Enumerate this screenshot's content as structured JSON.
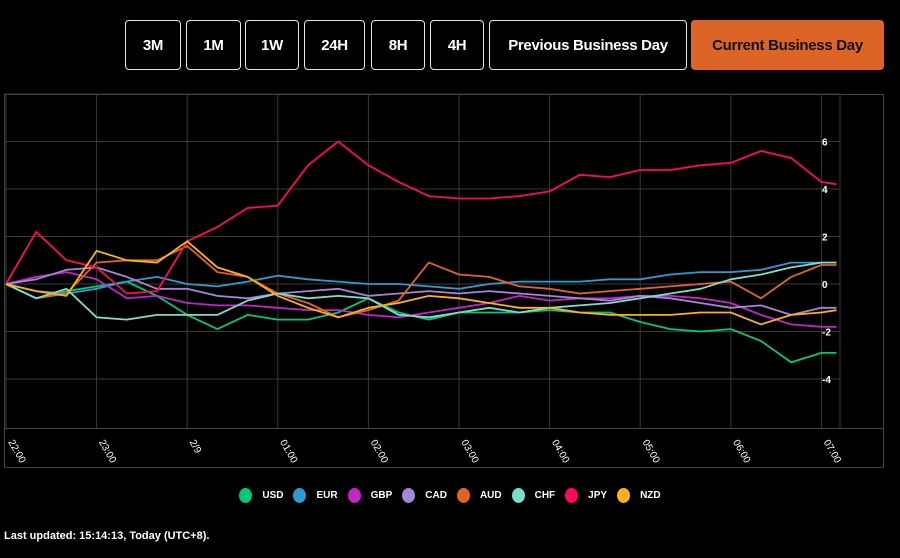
{
  "range_buttons": [
    {
      "label": "3M",
      "active": false
    },
    {
      "label": "1M",
      "active": false
    },
    {
      "label": "1W",
      "active": false
    },
    {
      "label": "24H",
      "active": false
    },
    {
      "label": "8H",
      "active": false
    },
    {
      "label": "4H",
      "active": false
    },
    {
      "label": "Previous Business Day",
      "active": false
    },
    {
      "label": "Current Business Day",
      "active": true
    }
  ],
  "accent_color": "#dd6427",
  "last_updated": "Last updated: 15:14:13, Today (UTC+8).",
  "chart_data": {
    "type": "line",
    "grid": true,
    "legend_position": "bottom",
    "ylim": [
      -6,
      8
    ],
    "yticks": [
      6,
      4,
      2,
      0,
      -2,
      -4
    ],
    "xtick_labels": [
      "22:00",
      "23:00",
      "2/9",
      "01:00",
      "02:00",
      "03:00",
      "04:00",
      "05:00",
      "06:00",
      "07:00"
    ],
    "x": [
      "22:00",
      "22:20",
      "22:40",
      "23:00",
      "23:20",
      "23:40",
      "00:00",
      "00:20",
      "00:40",
      "01:00",
      "01:20",
      "01:40",
      "02:00",
      "02:20",
      "02:40",
      "03:00",
      "03:20",
      "03:40",
      "04:00",
      "04:20",
      "04:40",
      "05:00",
      "05:20",
      "05:40",
      "06:00",
      "06:20",
      "06:40",
      "07:00",
      "07:10"
    ],
    "series": [
      {
        "name": "USD",
        "color": "#00c97a",
        "values": [
          0,
          -0.6,
          -0.3,
          -0.1,
          0.1,
          -0.5,
          -1.3,
          -1.9,
          -1.3,
          -1.5,
          -1.5,
          -1.2,
          -0.6,
          -1.2,
          -1.5,
          -1.2,
          -1.2,
          -1.2,
          -1.1,
          -1.2,
          -1.2,
          -1.6,
          -1.9,
          -2.0,
          -1.9,
          -2.4,
          -3.3,
          -2.9,
          -2.9
        ]
      },
      {
        "name": "EUR",
        "color": "#2e9bd0",
        "values": [
          0,
          -0.3,
          -0.4,
          -0.2,
          0.1,
          0.3,
          0,
          -0.1,
          0.1,
          0.35,
          0.2,
          0.1,
          0,
          0,
          -0.1,
          -0.2,
          0,
          0.1,
          0.1,
          0.1,
          0.2,
          0.2,
          0.4,
          0.5,
          0.5,
          0.6,
          0.9,
          0.9,
          0.9
        ]
      },
      {
        "name": "GBP",
        "color": "#c026c8",
        "values": [
          0,
          0.3,
          0.5,
          0.2,
          -0.6,
          -0.5,
          -0.8,
          -0.9,
          -0.9,
          -1.0,
          -1.1,
          -1.1,
          -1.3,
          -1.4,
          -1.2,
          -1.0,
          -0.8,
          -0.5,
          -0.7,
          -0.6,
          -0.6,
          -0.5,
          -0.5,
          -0.6,
          -0.8,
          -1.3,
          -1.7,
          -1.8,
          -1.8
        ]
      },
      {
        "name": "CAD",
        "color": "#a884d8",
        "values": [
          0,
          0.2,
          0.6,
          0.7,
          0.3,
          -0.2,
          -0.2,
          -0.5,
          -0.6,
          -0.4,
          -0.3,
          -0.2,
          -0.5,
          -0.4,
          -0.3,
          -0.4,
          -0.3,
          -0.4,
          -0.5,
          -0.6,
          -0.7,
          -0.5,
          -0.6,
          -0.8,
          -1.0,
          -0.9,
          -1.3,
          -1.0,
          -1.0
        ]
      },
      {
        "name": "AUD",
        "color": "#de6526",
        "values": [
          0,
          -0.6,
          -0.4,
          0.9,
          1.0,
          1.0,
          1.6,
          0.5,
          0.3,
          -0.4,
          -0.8,
          -1.4,
          -1.1,
          -0.7,
          0.9,
          0.4,
          0.3,
          -0.1,
          -0.2,
          -0.4,
          -0.3,
          -0.2,
          -0.1,
          0.0,
          0.1,
          -0.6,
          0.3,
          0.8,
          0.8
        ]
      },
      {
        "name": "CHF",
        "color": "#7edccb",
        "values": [
          0,
          -0.6,
          -0.2,
          -1.4,
          -1.5,
          -1.3,
          -1.3,
          -1.3,
          -0.7,
          -0.4,
          -0.6,
          -0.5,
          -0.6,
          -1.3,
          -1.4,
          -1.2,
          -1.0,
          -1.2,
          -1.0,
          -0.9,
          -0.8,
          -0.6,
          -0.4,
          -0.2,
          0.2,
          0.4,
          0.7,
          0.9,
          0.9
        ]
      },
      {
        "name": "JPY",
        "color": "#ff0a5a",
        "values": [
          0,
          2.2,
          1.0,
          0.7,
          -0.4,
          -0.3,
          1.8,
          2.4,
          3.2,
          3.3,
          5.0,
          6.0,
          5.0,
          4.3,
          3.7,
          3.6,
          3.6,
          3.7,
          3.9,
          4.6,
          4.5,
          4.8,
          4.8,
          5.0,
          5.1,
          5.6,
          5.3,
          4.3,
          4.2
        ]
      },
      {
        "name": "NZD",
        "color": "#fcb316",
        "values": [
          0,
          -0.3,
          -0.5,
          1.4,
          1.0,
          0.9,
          1.8,
          0.7,
          0.3,
          -0.5,
          -1.0,
          -1.4,
          -1.0,
          -0.8,
          -0.5,
          -0.6,
          -0.8,
          -1.0,
          -1.0,
          -1.2,
          -1.3,
          -1.3,
          -1.3,
          -1.2,
          -1.2,
          -1.7,
          -1.3,
          -1.2,
          -1.1
        ]
      }
    ]
  }
}
